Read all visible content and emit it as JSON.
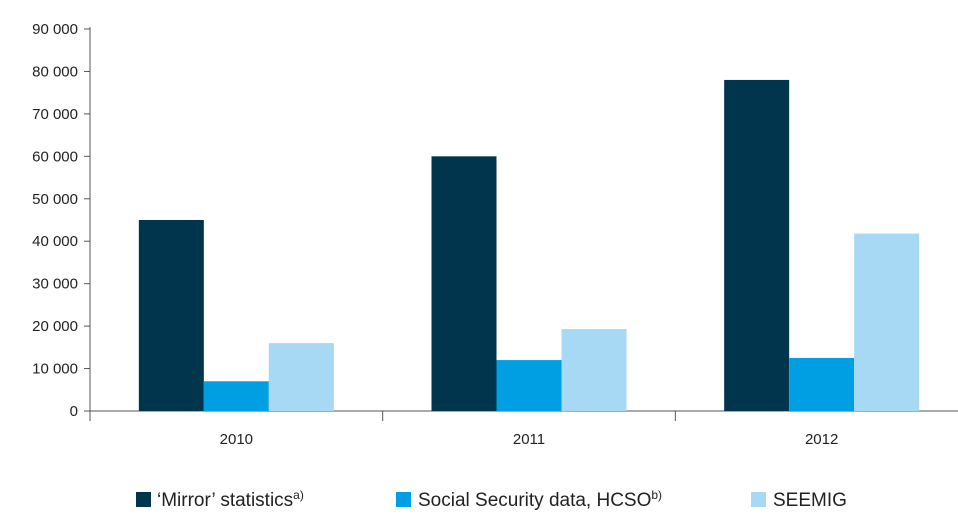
{
  "chart_data": {
    "type": "bar",
    "title": "",
    "xlabel": "",
    "ylabel": "",
    "categories": [
      "2010",
      "2011",
      "2012"
    ],
    "ylim": [
      0,
      90000
    ],
    "yticks": [
      0,
      10000,
      20000,
      30000,
      40000,
      50000,
      60000,
      70000,
      80000,
      90000
    ],
    "ytick_labels": [
      "0",
      "10 000",
      "20 000",
      "30 000",
      "40 000",
      "50 000",
      "60 000",
      "70 000",
      "80 000",
      "90 000"
    ],
    "grid": false,
    "legend_position": "bottom",
    "series": [
      {
        "name": "‘Mirror’ statistics",
        "superscript": "a)",
        "color": "#00354e",
        "values": [
          45000,
          60000,
          78000
        ]
      },
      {
        "name": "Social Security data, HCSO",
        "superscript": "b)",
        "color": "#009fe3",
        "values": [
          7000,
          12000,
          12500
        ]
      },
      {
        "name": "SEEMIG",
        "superscript": "",
        "color": "#a7d9f5",
        "values": [
          16000,
          19300,
          41800
        ]
      }
    ]
  }
}
